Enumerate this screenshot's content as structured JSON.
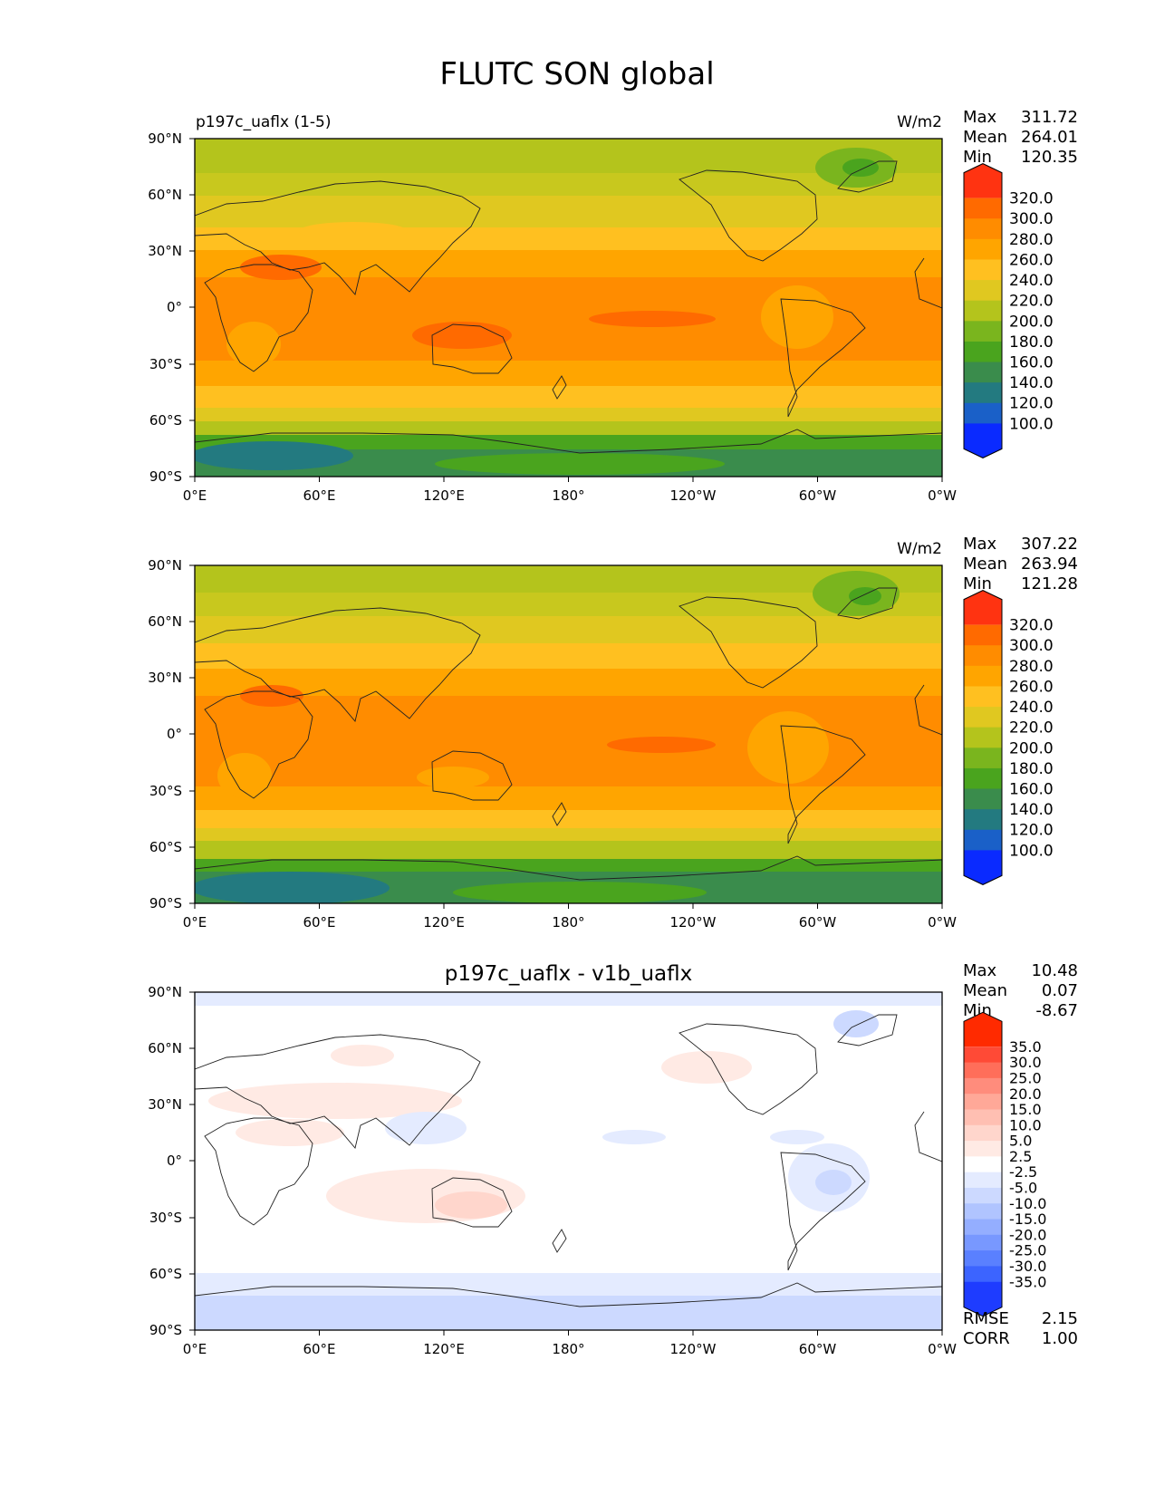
{
  "figure": {
    "title": "FLUTC SON global"
  },
  "axes": {
    "x_ticks": [
      "0°E",
      "60°E",
      "120°E",
      "180°",
      "120°W",
      "60°W",
      "0°W"
    ],
    "y_ticks": [
      "90°N",
      "60°N",
      "30°N",
      "0°",
      "30°S",
      "60°S",
      "90°S"
    ]
  },
  "panels": [
    {
      "id": "test",
      "left_title": "p197c_uaflx (1-5)",
      "center_title": "",
      "units": "W/m2",
      "stats": {
        "Max": "311.72",
        "Mean": "264.01",
        "Min": "120.35"
      },
      "colorbar": {
        "labels": [
          "320.0",
          "300.0",
          "280.0",
          "260.0",
          "240.0",
          "220.0",
          "200.0",
          "180.0",
          "160.0",
          "140.0",
          "120.0",
          "100.0"
        ],
        "colors": [
          "#ff3311",
          "#ff6a00",
          "#ff8c00",
          "#ffa500",
          "#ffc020",
          "#e0c820",
          "#b4c41c",
          "#7ab51e",
          "#4aa41e",
          "#3a8c4c",
          "#237a80",
          "#1a60c8",
          "#0a2aff"
        ]
      },
      "footer_stats": {}
    },
    {
      "id": "reference",
      "left_title": "",
      "center_title": "",
      "units": "W/m2",
      "stats": {
        "Max": "307.22",
        "Mean": "263.94",
        "Min": "121.28"
      },
      "colorbar": {
        "labels": [
          "320.0",
          "300.0",
          "280.0",
          "260.0",
          "240.0",
          "220.0",
          "200.0",
          "180.0",
          "160.0",
          "140.0",
          "120.0",
          "100.0"
        ],
        "colors": [
          "#ff3311",
          "#ff6a00",
          "#ff8c00",
          "#ffa500",
          "#ffc020",
          "#e0c820",
          "#b4c41c",
          "#7ab51e",
          "#4aa41e",
          "#3a8c4c",
          "#237a80",
          "#1a60c8",
          "#0a2aff"
        ]
      },
      "footer_stats": {}
    },
    {
      "id": "difference",
      "left_title": "",
      "center_title": "p197c_uaflx - v1b_uaflx",
      "units": "",
      "stats": {
        "Max": "10.48",
        "Mean": "0.07",
        "Min": "-8.67"
      },
      "colorbar": {
        "labels": [
          "35.0",
          "30.0",
          "25.0",
          "20.0",
          "15.0",
          "10.0",
          "5.0",
          "2.5",
          "-2.5",
          "-5.0",
          "-10.0",
          "-15.0",
          "-20.0",
          "-25.0",
          "-30.0",
          "-35.0"
        ],
        "colors": [
          "#ff2a00",
          "#ff4a36",
          "#ff6e5a",
          "#ff8c7c",
          "#ffa898",
          "#ffbfb2",
          "#ffd6cc",
          "#ffeae4",
          "#ffffff",
          "#e4ebff",
          "#ccd9ff",
          "#b0c4ff",
          "#94aeff",
          "#7898ff",
          "#5a80ff",
          "#3c64ff",
          "#1e3cff"
        ]
      },
      "footer_stats": {
        "RMSE": "2.15",
        "CORR": "1.00"
      }
    }
  ]
}
